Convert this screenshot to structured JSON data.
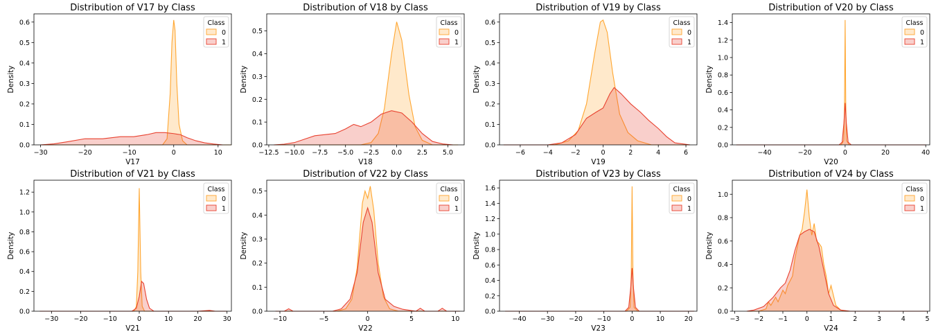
{
  "colors": {
    "class_0": "#FFA630",
    "class_1": "#E8412F"
  },
  "chart_data": [
    {
      "type": "area",
      "title": "Distribution of V17 by Class",
      "xlabel": "V17",
      "ylabel": "Density",
      "xlim": [
        -31.5,
        13
      ],
      "ylim": [
        0,
        0.64
      ],
      "xticks": [
        -30,
        -20,
        -10,
        0,
        10
      ],
      "xtick_labels": [
        "−30",
        "−20",
        "−10",
        "0",
        "10"
      ],
      "yticks": [
        0,
        0.1,
        0.2,
        0.3,
        0.4,
        0.5,
        0.6
      ],
      "ytick_labels": [
        "0.0",
        "0.1",
        "0.2",
        "0.3",
        "0.4",
        "0.5",
        "0.6"
      ],
      "legend": {
        "title": "Class",
        "position": "top-right",
        "entries": [
          "0",
          "1"
        ]
      },
      "series": [
        {
          "name": "0",
          "x": [
            -30,
            -2.5,
            -1.5,
            -0.8,
            -0.4,
            0,
            0.3,
            0.7,
            1.2,
            2,
            3,
            13
          ],
          "y": [
            0,
            0,
            0.03,
            0.25,
            0.5,
            0.61,
            0.56,
            0.3,
            0.1,
            0.02,
            0,
            0
          ]
        },
        {
          "name": "1",
          "x": [
            -30,
            -27,
            -24,
            -20,
            -16,
            -12,
            -9,
            -6,
            -4,
            -2,
            0,
            1.5,
            3,
            5,
            7,
            9,
            11
          ],
          "y": [
            0,
            0.005,
            0.015,
            0.03,
            0.03,
            0.04,
            0.04,
            0.05,
            0.06,
            0.06,
            0.055,
            0.05,
            0.035,
            0.02,
            0.01,
            0.004,
            0
          ]
        }
      ]
    },
    {
      "type": "area",
      "title": "Distribution of V18 by Class",
      "xlabel": "V18",
      "ylabel": "Density",
      "xlim": [
        -12.7,
        6.6
      ],
      "ylim": [
        0,
        0.575
      ],
      "xticks": [
        -12.5,
        -10,
        -7.5,
        -5,
        -2.5,
        0,
        2.5,
        5
      ],
      "xtick_labels": [
        "−12.5",
        "−10.0",
        "−7.5",
        "−5.0",
        "−2.5",
        "0.0",
        "2.5",
        "5.0"
      ],
      "yticks": [
        0,
        0.1,
        0.2,
        0.3,
        0.4,
        0.5
      ],
      "ytick_labels": [
        "0.0",
        "0.1",
        "0.2",
        "0.3",
        "0.4",
        "0.5"
      ],
      "legend": {
        "title": "Class",
        "position": "top-right",
        "entries": [
          "0",
          "1"
        ]
      },
      "series": [
        {
          "name": "0",
          "x": [
            -12,
            -3.5,
            -2.5,
            -1.8,
            -1.2,
            -0.5,
            0,
            0.5,
            1.2,
            1.8,
            2.5,
            3.5,
            6
          ],
          "y": [
            0,
            0,
            0.01,
            0.05,
            0.16,
            0.4,
            0.54,
            0.46,
            0.22,
            0.08,
            0.02,
            0,
            0
          ]
        },
        {
          "name": "1",
          "x": [
            -12,
            -11,
            -10,
            -9,
            -8,
            -7,
            -6,
            -5,
            -4.2,
            -3.5,
            -2.5,
            -1.5,
            -0.5,
            0.5,
            1.5,
            2.5,
            3.5,
            4.5,
            5.5
          ],
          "y": [
            0,
            0.003,
            0.01,
            0.025,
            0.04,
            0.045,
            0.05,
            0.07,
            0.09,
            0.08,
            0.1,
            0.135,
            0.15,
            0.14,
            0.1,
            0.05,
            0.015,
            0.004,
            0
          ]
        }
      ]
    },
    {
      "type": "area",
      "title": "Distribution of V19 by Class",
      "xlabel": "V19",
      "ylabel": "Density",
      "xlim": [
        -7.5,
        6.8
      ],
      "ylim": [
        0,
        0.64
      ],
      "xticks": [
        -6,
        -4,
        -2,
        0,
        2,
        4,
        6
      ],
      "xtick_labels": [
        "−6",
        "−4",
        "−2",
        "0",
        "2",
        "4",
        "6"
      ],
      "yticks": [
        0,
        0.1,
        0.2,
        0.3,
        0.4,
        0.5,
        0.6
      ],
      "ytick_labels": [
        "0.0",
        "0.1",
        "0.2",
        "0.3",
        "0.4",
        "0.5",
        "0.6"
      ],
      "legend": {
        "title": "Class",
        "position": "top-right",
        "entries": [
          "0",
          "1"
        ]
      },
      "series": [
        {
          "name": "0",
          "x": [
            -7.2,
            -3.5,
            -2.5,
            -1.8,
            -1.2,
            -0.6,
            -0.2,
            0,
            0.3,
            0.7,
            1.2,
            1.8,
            2.5,
            3.5,
            6.3
          ],
          "y": [
            0,
            0,
            0.02,
            0.07,
            0.2,
            0.45,
            0.6,
            0.61,
            0.55,
            0.35,
            0.15,
            0.06,
            0.02,
            0,
            0
          ]
        },
        {
          "name": "1",
          "x": [
            -7.2,
            -4,
            -3,
            -2,
            -1.2,
            -0.5,
            0,
            0.5,
            0.8,
            1.3,
            2,
            2.7,
            3.3,
            4,
            4.6,
            5.2,
            6.3
          ],
          "y": [
            0,
            0,
            0.01,
            0.05,
            0.13,
            0.16,
            0.18,
            0.25,
            0.28,
            0.25,
            0.2,
            0.16,
            0.12,
            0.08,
            0.04,
            0.01,
            0
          ]
        }
      ]
    },
    {
      "type": "area",
      "title": "Distribution of V20 by Class",
      "xlabel": "V20",
      "ylabel": "Density",
      "xlim": [
        -56,
        42
      ],
      "ylim": [
        0,
        1.5
      ],
      "xticks": [
        -40,
        -20,
        0,
        20,
        40
      ],
      "xtick_labels": [
        "−40",
        "−20",
        "0",
        "20",
        "40"
      ],
      "yticks": [
        0,
        0.2,
        0.4,
        0.6,
        0.8,
        1.0,
        1.2,
        1.4
      ],
      "ytick_labels": [
        "0.0",
        "0.2",
        "0.4",
        "0.6",
        "0.8",
        "1.0",
        "1.2",
        "1.4"
      ],
      "legend": {
        "title": "Class",
        "position": "top-right",
        "entries": [
          "0",
          "1"
        ]
      },
      "series": [
        {
          "name": "0",
          "x": [
            -54,
            -2,
            -0.7,
            -0.3,
            0,
            0.3,
            0.7,
            2,
            40
          ],
          "y": [
            0,
            0,
            0.05,
            0.5,
            1.43,
            0.5,
            0.05,
            0,
            0
          ]
        },
        {
          "name": "1",
          "x": [
            -54,
            -3,
            -1.5,
            -0.6,
            0,
            0.6,
            1.5,
            3,
            40
          ],
          "y": [
            0,
            0,
            0.03,
            0.25,
            0.48,
            0.25,
            0.03,
            0,
            0
          ]
        }
      ]
    },
    {
      "type": "area",
      "title": "Distribution of V21 by Class",
      "xlabel": "V21",
      "ylabel": "Density",
      "xlim": [
        -36,
        31.5
      ],
      "ylim": [
        0,
        1.32
      ],
      "xticks": [
        -30,
        -20,
        -10,
        0,
        10,
        20,
        30
      ],
      "xtick_labels": [
        "−30",
        "−20",
        "−10",
        "0",
        "10",
        "20",
        "30"
      ],
      "yticks": [
        0,
        0.2,
        0.4,
        0.6,
        0.8,
        1.0,
        1.2
      ],
      "ytick_labels": [
        "0.0",
        "0.2",
        "0.4",
        "0.6",
        "0.8",
        "1.0",
        "1.2"
      ],
      "legend": {
        "title": "Class",
        "position": "top-right",
        "entries": [
          "0",
          "1"
        ]
      },
      "series": [
        {
          "name": "0",
          "x": [
            -34,
            -1.8,
            -1,
            -0.5,
            0,
            0.5,
            1,
            1.8,
            30
          ],
          "y": [
            0,
            0,
            0.05,
            0.4,
            1.24,
            0.4,
            0.05,
            0,
            0
          ]
        },
        {
          "name": "1",
          "x": [
            -34,
            -2.5,
            -1,
            0,
            0.8,
            1.5,
            2.5,
            3.5,
            5,
            20,
            24,
            26,
            30
          ],
          "y": [
            0,
            0,
            0.03,
            0.15,
            0.3,
            0.28,
            0.12,
            0.03,
            0,
            0,
            0.008,
            0,
            0
          ]
        }
      ]
    },
    {
      "type": "area",
      "title": "Distribution of V22 by Class",
      "xlabel": "V22",
      "ylabel": "Density",
      "xlim": [
        -11.5,
        11
      ],
      "ylim": [
        0,
        0.545
      ],
      "xticks": [
        -10,
        -5,
        0,
        5,
        10
      ],
      "xtick_labels": [
        "−10",
        "−5",
        "0",
        "5",
        "10"
      ],
      "yticks": [
        0,
        0.1,
        0.2,
        0.3,
        0.4,
        0.5
      ],
      "ytick_labels": [
        "0.0",
        "0.1",
        "0.2",
        "0.3",
        "0.4",
        "0.5"
      ],
      "legend": {
        "title": "Class",
        "position": "top-right",
        "entries": [
          "0",
          "1"
        ]
      },
      "series": [
        {
          "name": "0",
          "x": [
            -10.5,
            -3.5,
            -2.5,
            -1.8,
            -1.2,
            -0.6,
            -0.3,
            0,
            0.3,
            0.7,
            1.2,
            1.8,
            2.5,
            3.5,
            10.5
          ],
          "y": [
            0,
            0,
            0.01,
            0.05,
            0.18,
            0.45,
            0.5,
            0.47,
            0.52,
            0.42,
            0.2,
            0.06,
            0.01,
            0,
            0
          ]
        },
        {
          "name": "1",
          "x": [
            -10.5,
            -9.5,
            -9,
            -8.5,
            -4,
            -3,
            -2,
            -1.2,
            -0.5,
            0,
            0.5,
            1.2,
            2,
            3,
            4,
            5.5,
            6,
            6.5,
            8,
            8.5,
            9,
            10.5
          ],
          "y": [
            0,
            0,
            0.01,
            0,
            0,
            0.01,
            0.05,
            0.16,
            0.37,
            0.43,
            0.37,
            0.16,
            0.05,
            0.02,
            0.008,
            0,
            0.012,
            0,
            0,
            0.012,
            0,
            0
          ]
        }
      ]
    },
    {
      "type": "area",
      "title": "Distribution of V23 by Class",
      "xlabel": "V23",
      "ylabel": "Density",
      "xlim": [
        -47,
        23
      ],
      "ylim": [
        0,
        1.7
      ],
      "xticks": [
        -40,
        -30,
        -20,
        -10,
        0,
        10,
        20
      ],
      "xtick_labels": [
        "−40",
        "−30",
        "−20",
        "−10",
        "0",
        "10",
        "20"
      ],
      "yticks": [
        0,
        0.2,
        0.4,
        0.6,
        0.8,
        1.0,
        1.2,
        1.4,
        1.6
      ],
      "ytick_labels": [
        "0.0",
        "0.2",
        "0.4",
        "0.6",
        "0.8",
        "1.0",
        "1.2",
        "1.4",
        "1.6"
      ],
      "legend": {
        "title": "Class",
        "position": "top-right",
        "entries": [
          "0",
          "1"
        ]
      },
      "series": [
        {
          "name": "0",
          "x": [
            -45,
            -2,
            -0.7,
            -0.3,
            0,
            0.3,
            0.7,
            2,
            22
          ],
          "y": [
            0,
            0,
            0.05,
            0.5,
            1.62,
            0.5,
            0.05,
            0,
            0
          ]
        },
        {
          "name": "1",
          "x": [
            -45,
            -2.5,
            -1.2,
            -0.5,
            0,
            0.5,
            1.2,
            2.5,
            22
          ],
          "y": [
            0,
            0,
            0.05,
            0.3,
            0.56,
            0.3,
            0.05,
            0,
            0
          ]
        }
      ]
    },
    {
      "type": "area",
      "title": "Distribution of V24 by Class",
      "xlabel": "V24",
      "ylabel": "Density",
      "xlim": [
        -3.1,
        5.1
      ],
      "ylim": [
        0,
        1.12
      ],
      "xticks": [
        -3,
        -2,
        -1,
        0,
        1,
        2,
        3,
        4,
        5
      ],
      "xtick_labels": [
        "−3",
        "−2",
        "−1",
        "0",
        "1",
        "2",
        "3",
        "4",
        "5"
      ],
      "yticks": [
        0,
        0.2,
        0.4,
        0.6,
        0.8,
        1.0
      ],
      "ytick_labels": [
        "0.0",
        "0.2",
        "0.4",
        "0.6",
        "0.8",
        "1.0"
      ],
      "legend": {
        "title": "Class",
        "position": "top-right",
        "entries": [
          "0",
          "1"
        ]
      },
      "series": [
        {
          "name": "0",
          "x": [
            -2.5,
            -2,
            -1.7,
            -1.6,
            -1.5,
            -1.3,
            -1.2,
            -1,
            -0.9,
            -0.8,
            -0.6,
            -0.5,
            -0.3,
            -0.2,
            -0.1,
            0,
            0.1,
            0.2,
            0.3,
            0.4,
            0.5,
            0.6,
            0.7,
            0.8,
            0.9,
            1,
            1.2,
            1.4,
            1.6,
            5
          ],
          "y": [
            0,
            0,
            0.02,
            0.08,
            0.05,
            0.12,
            0.08,
            0.18,
            0.15,
            0.22,
            0.3,
            0.45,
            0.65,
            0.7,
            0.85,
            1.04,
            0.8,
            0.65,
            0.75,
            0.6,
            0.58,
            0.55,
            0.4,
            0.3,
            0.15,
            0.22,
            0.05,
            0.01,
            0,
            0
          ]
        },
        {
          "name": "1",
          "x": [
            -2.5,
            -2.2,
            -1.8,
            -1.4,
            -1.1,
            -0.9,
            -0.7,
            -0.5,
            -0.3,
            -0.1,
            0.1,
            0.3,
            0.5,
            0.7,
            0.9,
            1.1,
            1.4,
            1.8,
            5
          ],
          "y": [
            0,
            0.01,
            0.04,
            0.12,
            0.2,
            0.24,
            0.35,
            0.52,
            0.65,
            0.68,
            0.7,
            0.68,
            0.55,
            0.35,
            0.15,
            0.05,
            0.01,
            0,
            0
          ]
        }
      ]
    }
  ]
}
